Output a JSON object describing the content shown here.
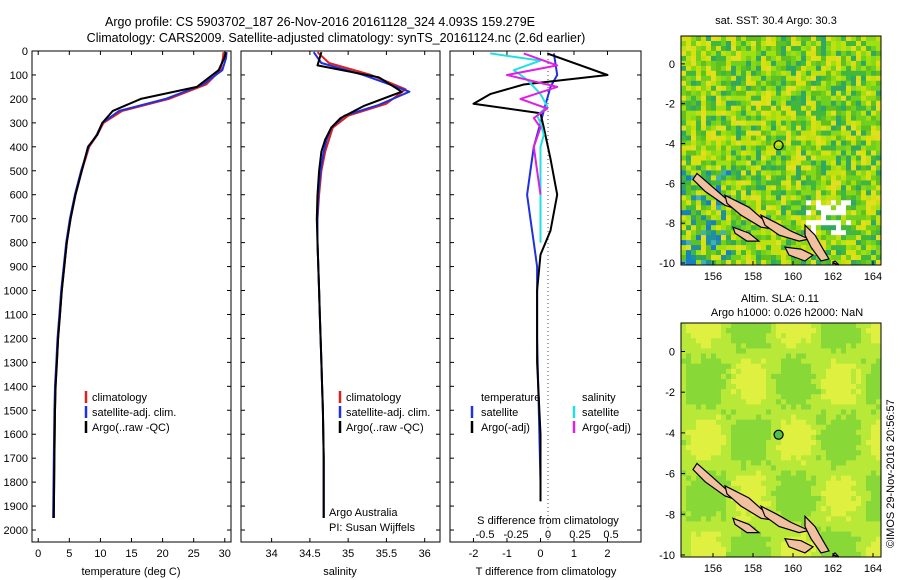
{
  "header": {
    "line1": "Argo profile: CS 5903702_187 26-Nov-2016 20161128_324 4.093S 159.279E",
    "line2": "Climatology: CARS2009. Satellite-adjusted climatology: synTS_20161124.nc (2.6d earlier)"
  },
  "colors": {
    "climatology": "#e02020",
    "satellite": "#2030e0",
    "argo": "#000000",
    "sat_salinity": "#20e0e0",
    "argo_salinity": "#e020e0",
    "land": "#f0c0a0"
  },
  "chart_data": [
    {
      "type": "line",
      "id": "temperature",
      "xlabel": "temperature (deg C)",
      "ylabel": "",
      "xlim": [
        -1,
        31
      ],
      "ylim": [
        2050,
        0
      ],
      "y_reversed": true,
      "xticks": [
        0,
        5,
        10,
        15,
        20,
        25,
        30
      ],
      "yticks": [
        0,
        100,
        200,
        300,
        400,
        500,
        600,
        700,
        800,
        900,
        1000,
        1100,
        1200,
        1300,
        1400,
        1500,
        1600,
        1700,
        1800,
        1900,
        2000
      ],
      "legend": [
        "climatology",
        "satellite-adj. clim.",
        "Argo(..raw -QC)"
      ],
      "series": [
        {
          "name": "climatology",
          "x": [
            29.8,
            29.7,
            29.3,
            27.0,
            21.0,
            13.5,
            10.5,
            9.5,
            8.2,
            7.0,
            6.0,
            5.2,
            4.6,
            4.2,
            3.8,
            3.5,
            3.2,
            3.0,
            2.8,
            2.7,
            2.6,
            2.5
          ],
          "y": [
            5,
            30,
            80,
            140,
            200,
            250,
            300,
            350,
            400,
            500,
            600,
            700,
            800,
            900,
            1000,
            1100,
            1200,
            1300,
            1400,
            1500,
            1700,
            1950
          ]
        },
        {
          "name": "satellite-adj. clim.",
          "x": [
            30.3,
            30.2,
            29.6,
            26.5,
            20.5,
            13.0,
            10.3,
            9.4,
            8.1,
            6.9,
            5.9,
            5.1,
            4.5,
            4.1,
            3.7,
            3.4,
            3.1,
            2.9,
            2.7,
            2.6,
            2.5,
            2.4
          ],
          "y": [
            5,
            30,
            80,
            140,
            200,
            250,
            300,
            350,
            400,
            500,
            600,
            700,
            800,
            900,
            1000,
            1100,
            1200,
            1300,
            1400,
            1500,
            1700,
            1950
          ]
        },
        {
          "name": "Argo(..raw -QC)",
          "x": [
            30.2,
            29.9,
            29.0,
            25.5,
            16.5,
            12.0,
            10.3,
            9.5,
            8.0,
            7.0,
            6.0,
            5.2,
            4.6,
            4.2,
            3.8,
            3.5,
            3.2,
            3.0,
            2.8,
            2.7,
            2.6,
            2.5
          ],
          "y": [
            5,
            30,
            80,
            150,
            200,
            250,
            300,
            350,
            400,
            500,
            600,
            700,
            800,
            900,
            1000,
            1100,
            1200,
            1300,
            1400,
            1500,
            1700,
            1950
          ]
        }
      ]
    },
    {
      "type": "line",
      "id": "salinity",
      "xlabel": "salinity",
      "ylabel": "",
      "xlim": [
        33.6,
        36.2
      ],
      "ylim": [
        2050,
        0
      ],
      "y_reversed": true,
      "xticks": [
        34,
        34.5,
        35,
        35.5,
        36
      ],
      "legend": [
        "climatology",
        "satellite-adj. clim.",
        "Argo(..raw -QC)"
      ],
      "annotations": [
        "Argo Australia",
        "PI: Susan Wijffels"
      ],
      "series": [
        {
          "name": "climatology",
          "x": [
            34.6,
            34.75,
            35.3,
            35.75,
            35.5,
            35.0,
            34.8,
            34.75,
            34.7,
            34.65,
            34.62,
            34.6,
            34.6,
            34.61,
            34.62,
            34.63,
            34.64,
            34.65,
            34.66,
            34.67,
            34.68,
            34.68
          ],
          "y": [
            5,
            50,
            100,
            160,
            220,
            270,
            320,
            370,
            420,
            500,
            600,
            700,
            800,
            900,
            1000,
            1100,
            1200,
            1300,
            1400,
            1500,
            1700,
            1950
          ]
        },
        {
          "name": "satellite-adj. clim.",
          "x": [
            34.55,
            34.65,
            35.2,
            35.8,
            35.4,
            34.95,
            34.78,
            34.72,
            34.68,
            34.64,
            34.61,
            34.6,
            34.6,
            34.61,
            34.62,
            34.63,
            34.64,
            34.65,
            34.66,
            34.67,
            34.68,
            34.68
          ],
          "y": [
            5,
            50,
            100,
            170,
            225,
            270,
            320,
            370,
            420,
            500,
            600,
            700,
            800,
            900,
            1000,
            1100,
            1200,
            1300,
            1400,
            1500,
            1700,
            1950
          ]
        },
        {
          "name": "Argo(..raw -QC)",
          "x": [
            34.65,
            34.6,
            35.4,
            35.7,
            35.2,
            34.9,
            34.78,
            34.7,
            34.65,
            34.62,
            34.6,
            34.59,
            34.6,
            34.61,
            34.62,
            34.63,
            34.64,
            34.65,
            34.66,
            34.67,
            34.68,
            34.68
          ],
          "y": [
            5,
            60,
            110,
            170,
            230,
            280,
            320,
            370,
            420,
            500,
            600,
            700,
            800,
            900,
            1000,
            1100,
            1200,
            1300,
            1400,
            1500,
            1700,
            1950
          ]
        }
      ]
    },
    {
      "type": "line",
      "id": "differences",
      "xlabel": "T difference from climatology",
      "xlabel_top": "S difference from climatology",
      "xlim": [
        -2.7,
        3.0
      ],
      "ylim": [
        2050,
        0
      ],
      "y_reversed": true,
      "xticks": [
        -2,
        -1,
        0,
        1,
        2
      ],
      "xticks_top": [
        "-0.5",
        "-0.25",
        "0",
        "0.25",
        "0.5"
      ],
      "legend_headers": [
        "temperature",
        "salinity"
      ],
      "legend": [
        "satellite",
        "Argo(-adj)",
        "satellite",
        "Argo(-adj)"
      ],
      "series": [
        {
          "name": "temperature satellite",
          "x": [
            0.4,
            0.5,
            0.3,
            0.1,
            0.0,
            -0.2,
            -0.3,
            -0.4,
            -0.3,
            -0.2,
            -0.1,
            -0.1,
            -0.05,
            0.0,
            0.0
          ],
          "y": [
            10,
            100,
            150,
            250,
            300,
            400,
            500,
            600,
            700,
            800,
            900,
            1200,
            1500,
            1800,
            1880
          ]
        },
        {
          "name": "temperature Argo(-adj)",
          "x": [
            0.2,
            2.0,
            -0.5,
            -1.5,
            -2.0,
            0.0,
            0.1,
            0.3,
            0.5,
            0.3,
            0.0,
            -0.1,
            -0.1,
            0.0,
            0.0
          ],
          "y": [
            10,
            100,
            140,
            180,
            220,
            260,
            320,
            450,
            600,
            750,
            850,
            1000,
            1300,
            1600,
            1880
          ]
        },
        {
          "name": "salinity satellite",
          "x": [
            -1.5,
            0.0,
            -0.8,
            -0.4,
            0.0,
            0.2,
            -0.1,
            0.0,
            0.1,
            0.0,
            0.0,
            0.0
          ],
          "y": [
            10,
            40,
            80,
            120,
            180,
            230,
            270,
            300,
            350,
            400,
            600,
            800
          ]
        },
        {
          "name": "salinity Argo(-adj)",
          "x": [
            -0.5,
            0.5,
            -1.0,
            0.5,
            -0.6,
            0.2,
            -0.2,
            0.0,
            -0.2,
            -0.1,
            0.0
          ],
          "y": [
            10,
            60,
            100,
            150,
            200,
            240,
            280,
            320,
            400,
            500,
            600
          ]
        }
      ]
    }
  ],
  "maps": [
    {
      "id": "sst-map",
      "title": "sat. SST: 30.4  Argo: 30.3",
      "xticks": [
        "156",
        "158",
        "160",
        "162",
        "164"
      ],
      "yticks": [
        "0",
        "-2",
        "-4",
        "-6",
        "-8",
        "-10"
      ]
    },
    {
      "id": "sla-map",
      "title_line1": "Altim. SLA: 0.11",
      "title_line2": "Argo h1000: 0.026 h2000: NaN",
      "xticks": [
        "156",
        "158",
        "160",
        "162",
        "164"
      ],
      "yticks": [
        "0",
        "-2",
        "-4",
        "-6",
        "-8",
        "-10"
      ]
    }
  ],
  "credit": "©IMOS 29-Nov-2016 20:56:57"
}
